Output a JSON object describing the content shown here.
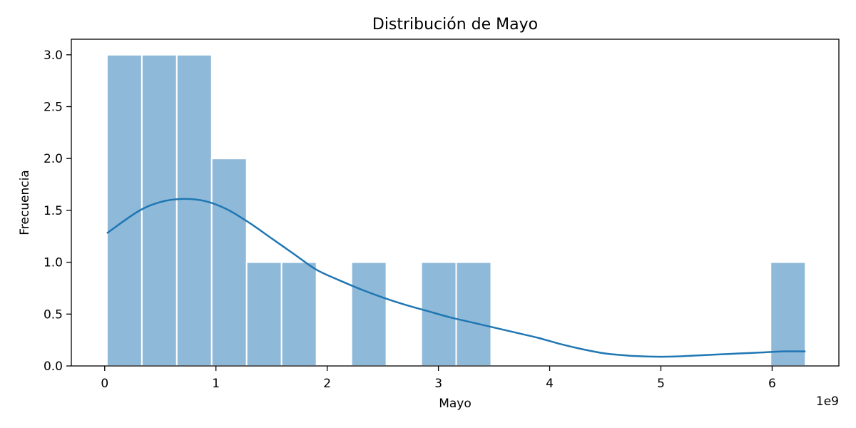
{
  "chart_data": {
    "type": "bar",
    "title": "Distribución de Mayo",
    "xlabel": "Mayo",
    "ylabel": "Frecuencia",
    "x_offset_label": "1e9",
    "xlim": [
      -0.3,
      6.6
    ],
    "ylim": [
      0,
      3.15
    ],
    "x_ticks": [
      0,
      1,
      2,
      3,
      4,
      5,
      6
    ],
    "x_tick_labels": [
      "0",
      "1",
      "2",
      "3",
      "4",
      "5",
      "6"
    ],
    "y_ticks": [
      0,
      0.5,
      1.0,
      1.5,
      2.0,
      2.5,
      3.0
    ],
    "y_tick_labels": [
      "0.0",
      "0.5",
      "1.0",
      "1.5",
      "2.0",
      "2.5",
      "3.0"
    ],
    "grid": false,
    "bar_color": "#8fb9d8",
    "kde_color": "#1f77b4",
    "bin_edges": [
      0.02,
      0.334,
      0.648,
      0.962,
      1.276,
      1.59,
      1.904,
      2.218,
      2.532,
      2.846,
      3.16,
      3.474,
      3.788,
      4.102,
      4.416,
      4.73,
      5.044,
      5.358,
      5.672,
      5.986,
      6.3
    ],
    "counts": [
      3,
      3,
      3,
      2,
      1,
      1,
      0,
      1,
      0,
      1,
      1,
      0,
      0,
      0,
      0,
      0,
      0,
      0,
      0,
      1
    ],
    "kde": {
      "x": [
        0.02,
        0.3,
        0.5,
        0.7,
        0.9,
        1.1,
        1.3,
        1.5,
        1.7,
        1.9,
        2.1,
        2.3,
        2.5,
        2.7,
        2.9,
        3.1,
        3.3,
        3.5,
        3.7,
        3.9,
        4.1,
        4.3,
        4.5,
        4.7,
        4.9,
        5.1,
        5.3,
        5.5,
        5.7,
        5.9,
        6.1,
        6.3
      ],
      "y": [
        1.28,
        1.49,
        1.58,
        1.61,
        1.59,
        1.51,
        1.38,
        1.23,
        1.08,
        0.93,
        0.83,
        0.74,
        0.66,
        0.59,
        0.53,
        0.47,
        0.42,
        0.37,
        0.32,
        0.27,
        0.21,
        0.16,
        0.12,
        0.1,
        0.09,
        0.09,
        0.1,
        0.11,
        0.12,
        0.13,
        0.14,
        0.14
      ]
    }
  }
}
